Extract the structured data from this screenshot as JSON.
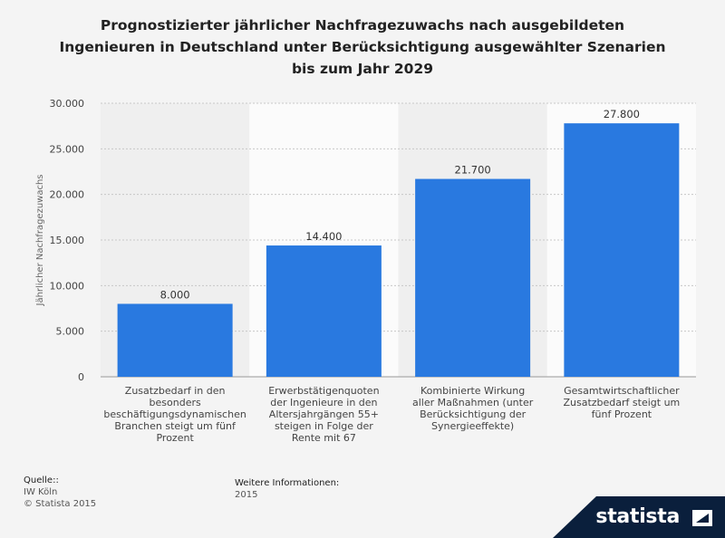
{
  "title_lines": [
    "Prognostizierter jährlicher Nachfragezuwachs nach ausgebildeten",
    "Ingenieuren in Deutschland unter Berücksichtigung ausgewählter Szenarien",
    "bis zum Jahr 2029"
  ],
  "chart_data": {
    "type": "bar",
    "title": "Prognostizierter jährlicher Nachfragezuwachs nach ausgebildeten Ingenieuren in Deutschland unter Berücksichtigung ausgewählter Szenarien bis zum Jahr 2029",
    "xlabel": "",
    "ylabel": "Jährlicher Nachfragezuwachs",
    "ylim": [
      0,
      30000
    ],
    "yticks": [
      0,
      5000,
      10000,
      15000,
      20000,
      25000,
      30000
    ],
    "ytick_labels": [
      "0",
      "5.000",
      "10.000",
      "15.000",
      "20.000",
      "25.000",
      "30.000"
    ],
    "grid": true,
    "bar_color": "#2979e0",
    "categories": [
      "Zusatzbedarf in den besonders beschäftigungsdynamischen Branchen steigt um fünf Prozent",
      "Erwerbstätigenquoten der Ingenieure in den Altersjahrgängen 55+ steigen in Folge der Rente mit 67",
      "Kombinierte Wirkung aller Maßnahmen (unter Berücksichtigung der Synergieeffekte)",
      "Gesamtwirtschaftlicher Zusatzbedarf steigt um fünf Prozent"
    ],
    "category_lines": [
      [
        "Zusatzbedarf in den",
        "besonders",
        "beschäftigungsdynamischen",
        "Branchen steigt um fünf",
        "Prozent"
      ],
      [
        "Erwerbstätigenquoten",
        "der Ingenieure in den",
        "Altersjahrgängen 55+",
        "steigen in Folge der",
        "Rente mit 67"
      ],
      [
        "Kombinierte Wirkung",
        "aller Maßnahmen (unter",
        "Berücksichtigung der",
        "Synergieeffekte)"
      ],
      [
        "Gesamtwirtschaftlicher",
        "Zusatzbedarf steigt um",
        "fünf Prozent"
      ]
    ],
    "values": [
      8000,
      14400,
      21700,
      27800
    ],
    "value_labels": [
      "8.000",
      "14.400",
      "21.700",
      "27.800"
    ]
  },
  "footer": {
    "source_heading": "Quelle::",
    "source_lines": [
      "IW Köln",
      "© Statista 2015"
    ],
    "info_heading": "Weitere Informationen:",
    "info_lines": [
      "2015"
    ]
  },
  "brand": {
    "name": "statista",
    "icon": "statista-logo-icon"
  }
}
